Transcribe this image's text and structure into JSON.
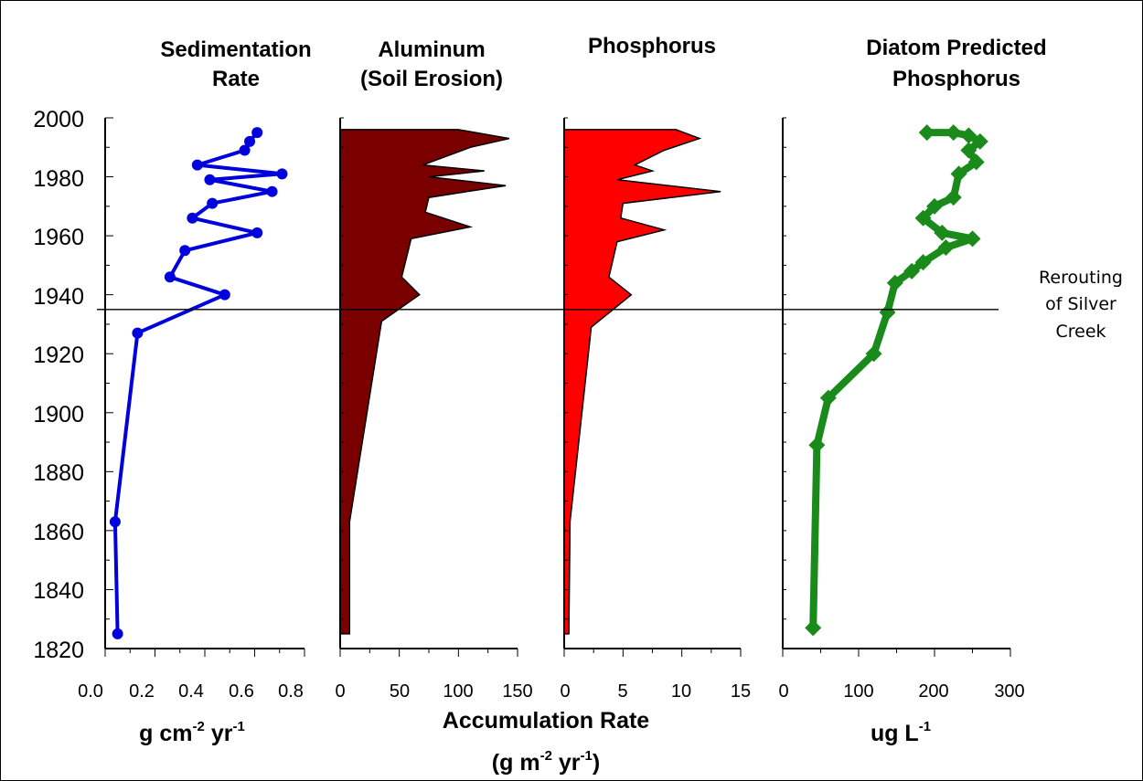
{
  "chart_data": [
    {
      "type": "line",
      "title_lines": [
        "Sedimentation",
        "Rate"
      ],
      "xlabel": "g cm-2 yr-1",
      "xlabel_parts": {
        "a": "g cm",
        "b": "-2",
        "c": " yr",
        "d": "-1"
      },
      "xlim": [
        0,
        0.8
      ],
      "xticks": [
        "0.0",
        "0.2",
        "0.4",
        "0.6",
        "0.8"
      ],
      "color": "#0000dd",
      "marker": "circle",
      "points": [
        {
          "x": 0.61,
          "y": 1995
        },
        {
          "x": 0.58,
          "y": 1992
        },
        {
          "x": 0.56,
          "y": 1989
        },
        {
          "x": 0.37,
          "y": 1984
        },
        {
          "x": 0.71,
          "y": 1981
        },
        {
          "x": 0.42,
          "y": 1979
        },
        {
          "x": 0.67,
          "y": 1975
        },
        {
          "x": 0.43,
          "y": 1971
        },
        {
          "x": 0.35,
          "y": 1966
        },
        {
          "x": 0.61,
          "y": 1961
        },
        {
          "x": 0.32,
          "y": 1955
        },
        {
          "x": 0.26,
          "y": 1946
        },
        {
          "x": 0.48,
          "y": 1940
        },
        {
          "x": 0.13,
          "y": 1927
        },
        {
          "x": 0.04,
          "y": 1863
        },
        {
          "x": 0.05,
          "y": 1825
        }
      ]
    },
    {
      "type": "area",
      "title_lines": [
        "Aluminum",
        "(Soil Erosion)"
      ],
      "xlim": [
        0,
        150
      ],
      "xticks": [
        "0",
        "50",
        "100",
        "150"
      ],
      "color": "#7a0000",
      "points": [
        {
          "x": 0,
          "y": 1996
        },
        {
          "x": 100,
          "y": 1996
        },
        {
          "x": 143,
          "y": 1993
        },
        {
          "x": 110,
          "y": 1990
        },
        {
          "x": 70,
          "y": 1984
        },
        {
          "x": 122,
          "y": 1982
        },
        {
          "x": 75,
          "y": 1980
        },
        {
          "x": 140,
          "y": 1977
        },
        {
          "x": 75,
          "y": 1973
        },
        {
          "x": 72,
          "y": 1968
        },
        {
          "x": 110,
          "y": 1963
        },
        {
          "x": 60,
          "y": 1959
        },
        {
          "x": 52,
          "y": 1946
        },
        {
          "x": 67,
          "y": 1940
        },
        {
          "x": 35,
          "y": 1931
        },
        {
          "x": 8,
          "y": 1863
        },
        {
          "x": 8,
          "y": 1825
        },
        {
          "x": 0,
          "y": 1825
        }
      ]
    },
    {
      "type": "area",
      "title_lines": [
        "Phosphorus"
      ],
      "xlim": [
        0,
        15
      ],
      "xticks": [
        "0",
        "5",
        "10",
        "15"
      ],
      "color": "#ff0000",
      "points": [
        {
          "x": 0,
          "y": 1996
        },
        {
          "x": 9.5,
          "y": 1996
        },
        {
          "x": 11.5,
          "y": 1993
        },
        {
          "x": 8.5,
          "y": 1989
        },
        {
          "x": 6,
          "y": 1984
        },
        {
          "x": 7.5,
          "y": 1982
        },
        {
          "x": 4.5,
          "y": 1979
        },
        {
          "x": 13.3,
          "y": 1975
        },
        {
          "x": 5,
          "y": 1971
        },
        {
          "x": 4.8,
          "y": 1966
        },
        {
          "x": 8.5,
          "y": 1962
        },
        {
          "x": 4.5,
          "y": 1958
        },
        {
          "x": 3.8,
          "y": 1946
        },
        {
          "x": 5.7,
          "y": 1940
        },
        {
          "x": 2.3,
          "y": 1929
        },
        {
          "x": 0.5,
          "y": 1863
        },
        {
          "x": 0.4,
          "y": 1825
        },
        {
          "x": 0,
          "y": 1825
        }
      ]
    },
    {
      "type": "line",
      "title_lines": [
        "Diatom Predicted",
        "Phosphorus"
      ],
      "xlabel": "ug L-1",
      "xlabel_parts": {
        "a": "ug L",
        "b": "-1"
      },
      "xlim": [
        0,
        300
      ],
      "xticks": [
        "0",
        "100",
        "200",
        "300"
      ],
      "color": "#1a8a1a",
      "marker": "diamond",
      "points": [
        {
          "x": 190,
          "y": 1995
        },
        {
          "x": 225,
          "y": 1995
        },
        {
          "x": 245,
          "y": 1994
        },
        {
          "x": 260,
          "y": 1992
        },
        {
          "x": 245,
          "y": 1989
        },
        {
          "x": 255,
          "y": 1985
        },
        {
          "x": 232,
          "y": 1981
        },
        {
          "x": 225,
          "y": 1973
        },
        {
          "x": 200,
          "y": 1970
        },
        {
          "x": 185,
          "y": 1966
        },
        {
          "x": 210,
          "y": 1961
        },
        {
          "x": 250,
          "y": 1959
        },
        {
          "x": 215,
          "y": 1956
        },
        {
          "x": 185,
          "y": 1951
        },
        {
          "x": 170,
          "y": 1948
        },
        {
          "x": 148,
          "y": 1944
        },
        {
          "x": 138,
          "y": 1934
        },
        {
          "x": 120,
          "y": 1920
        },
        {
          "x": 60,
          "y": 1905
        },
        {
          "x": 45,
          "y": 1889
        },
        {
          "x": 40,
          "y": 1827
        }
      ]
    }
  ],
  "y_axis": {
    "ylim": [
      1820,
      2000
    ],
    "ticks": [
      "2000",
      "1980",
      "1960",
      "1940",
      "1920",
      "1900",
      "1880",
      "1860",
      "1840",
      "1820"
    ]
  },
  "shared_xlabel": {
    "line1": "Accumulation Rate",
    "line2_parts": {
      "a": "(g m",
      "b": "-2",
      "c": " yr",
      "d": "-1",
      "e": ")"
    }
  },
  "reference_line": {
    "year": 1935,
    "label_lines": [
      "Rerouting",
      "of Silver",
      "Creek"
    ]
  }
}
